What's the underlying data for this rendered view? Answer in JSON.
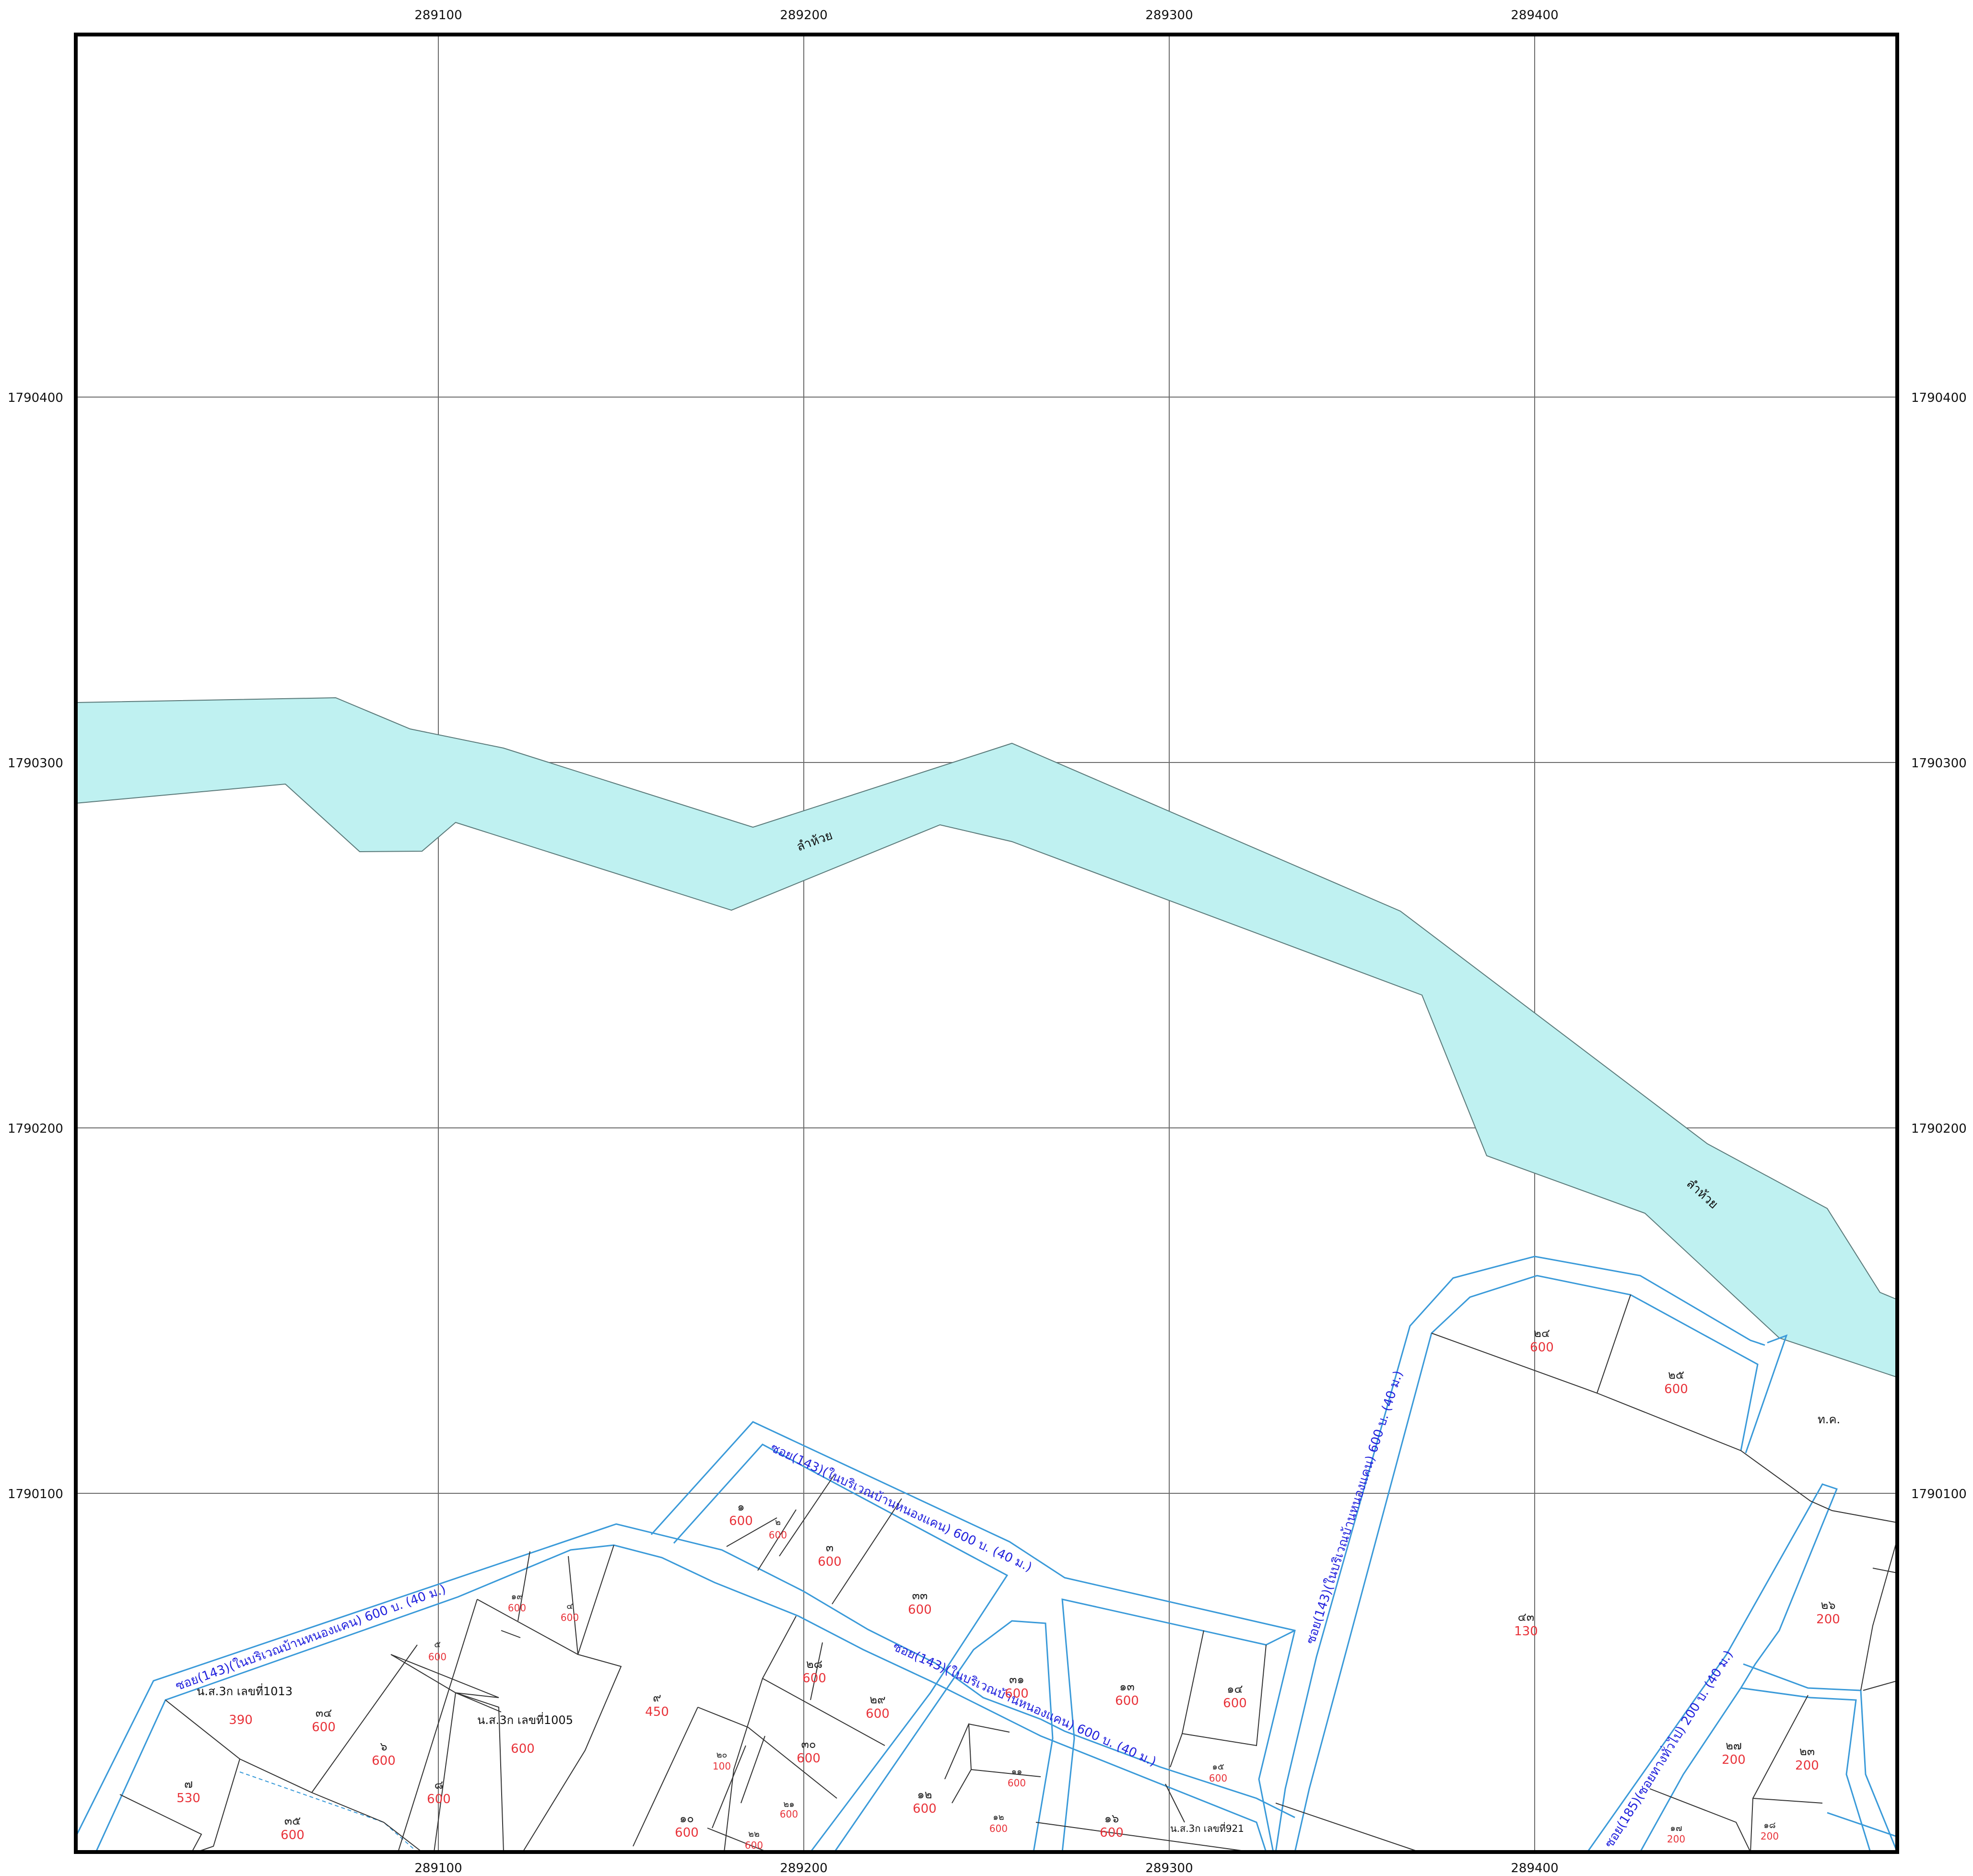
{
  "map": {
    "x_ticks": [
      "289100",
      "289200",
      "289300",
      "289400"
    ],
    "y_ticks": [
      "1790400",
      "1790300",
      "1790200",
      "1790100"
    ],
    "stream_labels": [
      "ลำห้วย",
      "ลำห้วย"
    ],
    "road_labels": [
      "ซอย(143)(ในบริเวณบ้านหนองแคน) 600 บ. (40 ม.)",
      "ซอย(143)(ในบริเวณบ้านหนองแคน) 600 บ. (40 ม.)",
      "ซอย(143)(ในบริเวณบ้านหนองแคน) 600 บ. (40 ม.)",
      "ซอย(143)(ในบริเวณบ้านหนองแคน) 600 บ. (40 ม.)",
      "ซอย(185)(ซอยทางทั่วไป) 200 บ. (40 ม.)"
    ],
    "feature_labels": [
      "น.ส.3ก เลขที่1013",
      "น.ส.3ก เลขที่1005",
      "น.ส.3ก เลขที่921",
      "ท.ค."
    ],
    "parcels": [
      {
        "num": "๑",
        "val": "600"
      },
      {
        "num": "๒",
        "val": "600"
      },
      {
        "num": "๓",
        "val": "600"
      },
      {
        "num": "๓๓",
        "val": "600"
      },
      {
        "num": "๑๙",
        "val": "600"
      },
      {
        "num": "๔",
        "val": "600"
      },
      {
        "num": "๕",
        "val": "600"
      },
      {
        "num": "๓๔",
        "val": "600"
      },
      {
        "num": "๖",
        "val": "600"
      },
      {
        "num": "๘",
        "val": "600"
      },
      {
        "num": "๗",
        "val": "530"
      },
      {
        "num": "๓๕",
        "val": "600"
      },
      {
        "num": "๙",
        "val": "450"
      },
      {
        "num": "๒๘",
        "val": "600"
      },
      {
        "num": "๒๙",
        "val": "600"
      },
      {
        "num": "๓๐",
        "val": "600"
      },
      {
        "num": "๒๐",
        "val": "100"
      },
      {
        "num": "๒๑",
        "val": "600"
      },
      {
        "num": "๑๐",
        "val": "600"
      },
      {
        "num": "๒๒",
        "val": "600"
      },
      {
        "num": "๓๑",
        "val": "600"
      },
      {
        "num": "๑๒",
        "val": "600"
      },
      {
        "num": "๑๑",
        "val": "600"
      },
      {
        "num": "๑๒",
        "val": "600"
      },
      {
        "num": "๑๓",
        "val": "600"
      },
      {
        "num": "๑๔",
        "val": "600"
      },
      {
        "num": "๑๕",
        "val": "600"
      },
      {
        "num": "๑๖",
        "val": "600"
      },
      {
        "num": "๒๔",
        "val": "600"
      },
      {
        "num": "๒๕",
        "val": "600"
      },
      {
        "num": "๔๓",
        "val": "130"
      },
      {
        "num": "๒๖",
        "val": "200"
      },
      {
        "num": "๒๗",
        "val": "200"
      },
      {
        "num": "๒๓",
        "val": "200"
      },
      {
        "num": "๑๗",
        "val": "200"
      },
      {
        "num": "๑๘",
        "val": "200"
      },
      {
        "num": "",
        "val": "600"
      },
      {
        "num": "",
        "val": "390"
      }
    ]
  }
}
